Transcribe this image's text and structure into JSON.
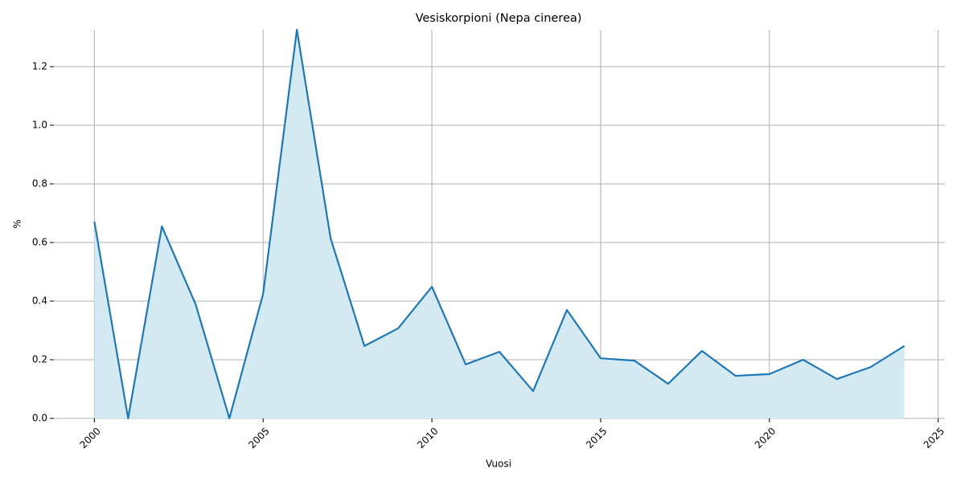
{
  "chart_data": {
    "type": "area-line",
    "title": "Vesiskorpioni (Nepa cinerea)",
    "x_label": "Vuosi",
    "y_label": "%",
    "x": [
      2000,
      2001,
      2002,
      2003,
      2004,
      2005,
      2006,
      2007,
      2008,
      2009,
      2010,
      2011,
      2012,
      2013,
      2014,
      2015,
      2016,
      2017,
      2018,
      2019,
      2020,
      2021,
      2022,
      2023,
      2024
    ],
    "series": [
      {
        "name": "%",
        "color": "#1f77b4",
        "fill_color": "#d4eaf2",
        "values": [
          0.671,
          0,
          0.655,
          0.389,
          0,
          0.425,
          1.326,
          0.614,
          0.247,
          0.307,
          0.449,
          0.184,
          0.227,
          0.093,
          0.37,
          0.205,
          0.197,
          0.118,
          0.23,
          0.145,
          0.151,
          0.2,
          0.134,
          0.175,
          0.247
        ]
      }
    ],
    "xlim": [
      1998.8,
      2025.2
    ],
    "ylim": [
      0,
      1.326
    ],
    "xticks": [
      2000,
      2005,
      2010,
      2015,
      2020,
      2025
    ],
    "yticks": [
      {
        "value": 0,
        "label": "0.0"
      },
      0.2,
      0.4,
      0.6,
      0.8,
      {
        "value": 1,
        "label": "1.0"
      },
      1.2
    ],
    "grid": true
  }
}
